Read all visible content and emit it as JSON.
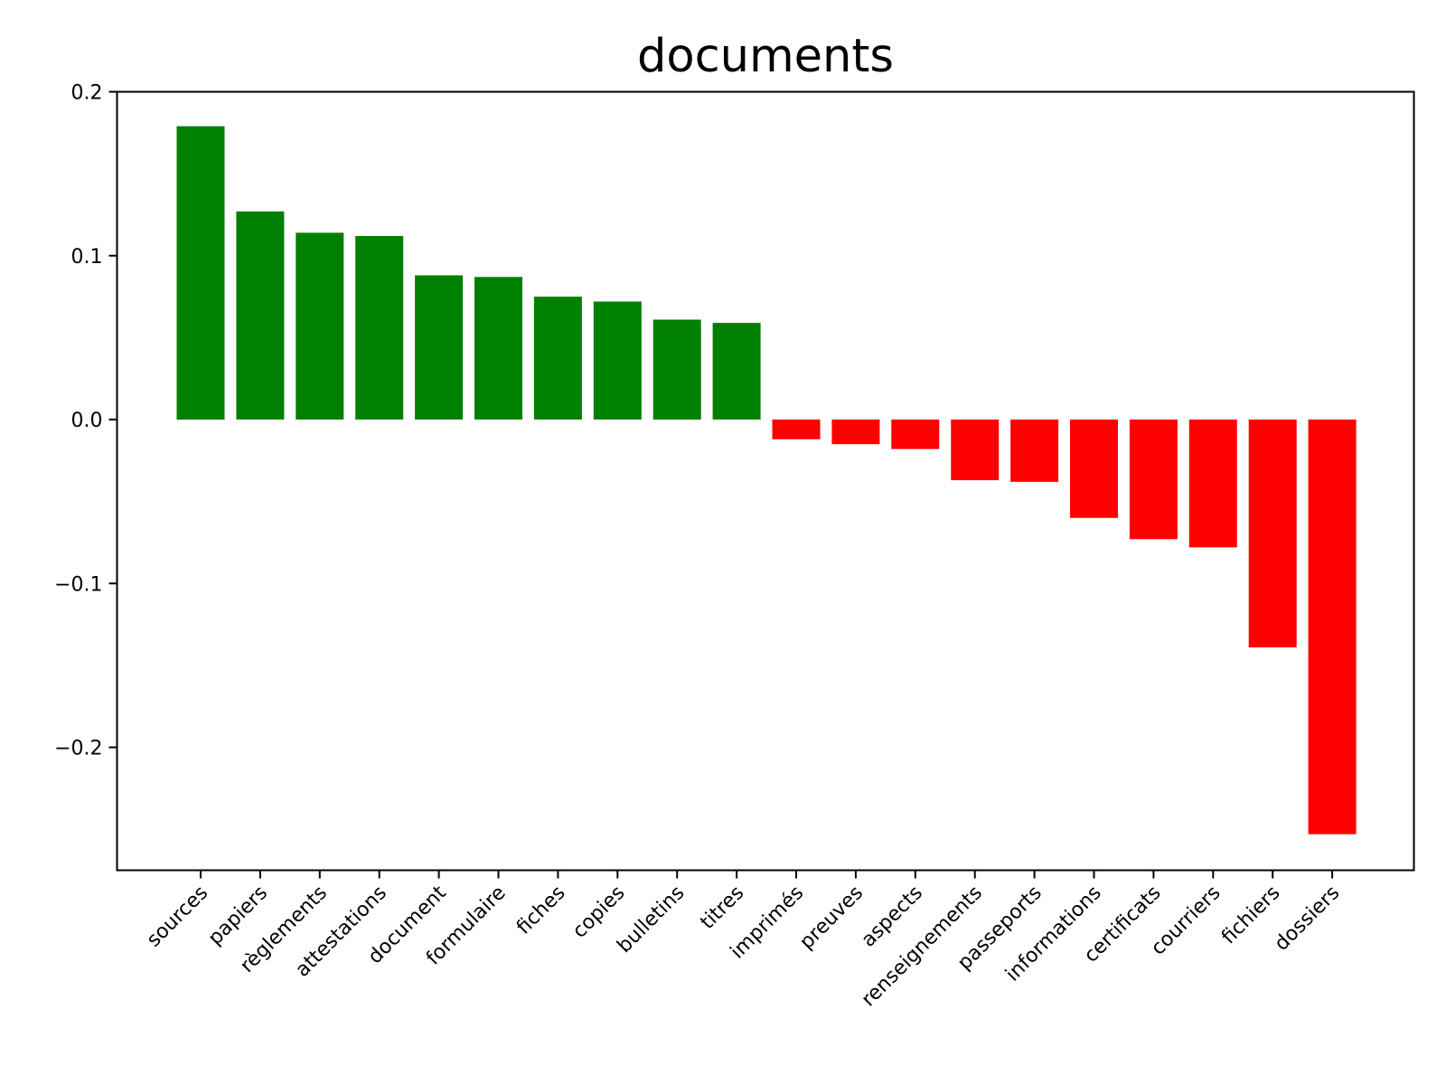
{
  "chart_data": {
    "type": "bar",
    "title": "documents",
    "xlabel": "",
    "ylabel": "",
    "ylim": [
      -0.275,
      0.2
    ],
    "yticks": [
      0.2,
      0.1,
      0.0,
      -0.1,
      -0.2
    ],
    "ytick_labels": [
      "0.2",
      "0.1",
      "0.0",
      "−0.1",
      "−0.2"
    ],
    "grid": false,
    "positive_color": "#008000",
    "negative_color": "#ff0000",
    "categories": [
      "sources",
      "papiers",
      "règlements",
      "attestations",
      "document",
      "formulaire",
      "fiches",
      "copies",
      "bulletins",
      "titres",
      "imprimés",
      "preuves",
      "aspects",
      "renseignements",
      "passeports",
      "informations",
      "certificats",
      "courriers",
      "fichiers",
      "dossiers"
    ],
    "values": [
      0.179,
      0.127,
      0.114,
      0.112,
      0.088,
      0.087,
      0.075,
      0.072,
      0.061,
      0.059,
      -0.012,
      -0.015,
      -0.018,
      -0.037,
      -0.038,
      -0.06,
      -0.073,
      -0.078,
      -0.139,
      -0.253
    ]
  }
}
